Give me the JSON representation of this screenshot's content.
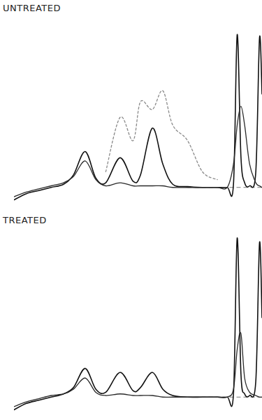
{
  "chart_data": [
    {
      "type": "line",
      "title": "UNTREATED",
      "tick_labels": false,
      "grid": false,
      "x": [
        0,
        5,
        10,
        15,
        20,
        24,
        28.7,
        33,
        37,
        42.8,
        48,
        51,
        55.8,
        60,
        64,
        70,
        76,
        82,
        86,
        88.5,
        90,
        91.5,
        93,
        95,
        97.5,
        99,
        100
      ],
      "xlim": [
        0,
        100
      ],
      "ylim": [
        -10,
        100
      ],
      "series": [
        {
          "color": "#111111",
          "line_style": "solid",
          "values": [
            -8,
            -4,
            -2,
            0,
            2,
            8,
            23,
            6,
            3,
            19,
            4,
            8,
            38,
            15,
            2,
            0.5,
            0,
            0,
            0,
            2,
            98,
            20,
            3,
            1,
            10,
            96,
            60
          ]
        },
        {
          "color": "#2a2a2a",
          "line_style": "solid",
          "values": [
            -6,
            -3,
            -1,
            1,
            3,
            7,
            17,
            5,
            1,
            3,
            1,
            1,
            1,
            1,
            0,
            0,
            0,
            0,
            0,
            15,
            40,
            52,
            40,
            15,
            3,
            1,
            0
          ]
        },
        {
          "color": "#8a8a8a",
          "line_style": "dashed",
          "values": [
            null,
            null,
            null,
            null,
            null,
            null,
            null,
            null,
            10,
            45,
            30,
            55,
            50,
            62,
            40,
            30,
            10,
            5,
            null,
            null,
            null,
            null,
            null,
            null,
            null,
            null,
            null
          ]
        }
      ]
    },
    {
      "type": "line",
      "title": "TREATED",
      "tick_labels": false,
      "grid": false,
      "x": [
        0,
        5,
        10,
        15,
        20,
        24,
        28.7,
        33,
        37,
        42.8,
        48,
        51,
        55.8,
        60,
        64,
        70,
        76,
        82,
        86,
        88.5,
        90,
        91.5,
        93,
        95,
        97.5,
        99,
        100
      ],
      "xlim": [
        0,
        100
      ],
      "ylim": [
        -10,
        100
      ],
      "series": [
        {
          "color": "#111111",
          "line_style": "solid",
          "values": [
            -8,
            -4,
            -2,
            0,
            2,
            6,
            18,
            5,
            3,
            15.5,
            4,
            6,
            15.5,
            5,
            1,
            0,
            0,
            0,
            0,
            2,
            100,
            15,
            2,
            1,
            10,
            97,
            50
          ]
        },
        {
          "color": "#2a2a2a",
          "line_style": "solid",
          "values": [
            -6,
            -3,
            -1,
            1,
            2,
            5,
            12,
            3,
            1,
            2,
            1,
            1,
            1,
            0,
            0,
            0,
            0,
            0,
            0,
            5,
            30,
            40,
            12,
            3,
            1,
            0,
            0
          ]
        }
      ]
    }
  ]
}
